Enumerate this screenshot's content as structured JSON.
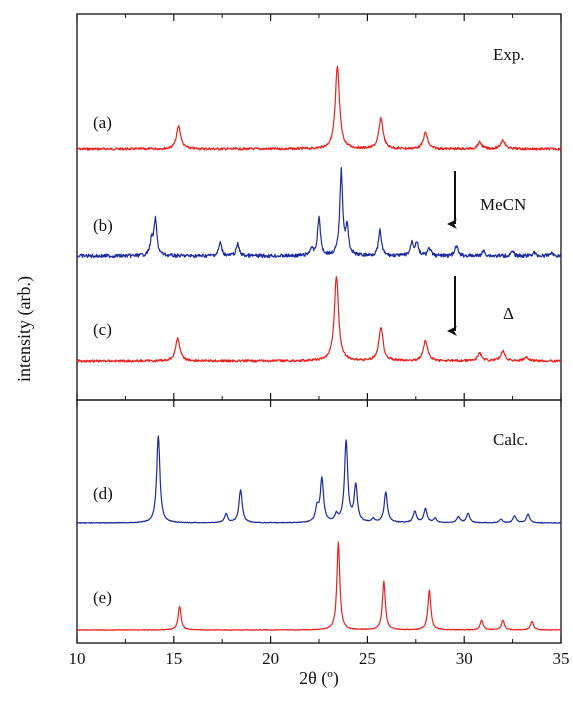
{
  "chart_data": {
    "type": "line",
    "xlabel": "2θ (º)",
    "ylabel": "intensity (arb.)",
    "xlim": [
      10,
      35
    ],
    "x_ticks": [
      10,
      15,
      20,
      25,
      30,
      35
    ],
    "grid": false,
    "colors": {
      "red": "#e8211c",
      "blue": "#1b2a9c",
      "axis": "#111111"
    },
    "panels": [
      {
        "label": "Exp.",
        "traces": [
          {
            "label": "(a)",
            "color": "#e8211c",
            "peaks": [
              [
                15.25,
                0.28
              ],
              [
                23.45,
                1.0
              ],
              [
                25.7,
                0.37
              ],
              [
                28.0,
                0.2
              ],
              [
                30.8,
                0.08
              ],
              [
                32.0,
                0.11
              ]
            ]
          },
          {
            "label": "(b)",
            "color": "#1b2a9c",
            "annotation": "MeCN",
            "peaks": [
              [
                13.85,
                0.18
              ],
              [
                14.05,
                0.42
              ],
              [
                17.4,
                0.16
              ],
              [
                18.3,
                0.14
              ],
              [
                22.1,
                0.08
              ],
              [
                22.5,
                0.45
              ],
              [
                23.65,
                1.0
              ],
              [
                23.95,
                0.32
              ],
              [
                25.65,
                0.3
              ],
              [
                27.3,
                0.16
              ],
              [
                27.55,
                0.16
              ],
              [
                28.2,
                0.09
              ],
              [
                29.6,
                0.12
              ],
              [
                31.0,
                0.06
              ],
              [
                32.5,
                0.05
              ],
              [
                33.6,
                0.04
              ],
              [
                34.5,
                0.04
              ]
            ]
          },
          {
            "label": "(c)",
            "color": "#e8211c",
            "annotation": "Δ",
            "peaks": [
              [
                15.2,
                0.27
              ],
              [
                23.4,
                1.0
              ],
              [
                25.7,
                0.4
              ],
              [
                28.0,
                0.24
              ],
              [
                30.8,
                0.09
              ],
              [
                32.0,
                0.12
              ],
              [
                33.2,
                0.04
              ]
            ]
          }
        ]
      },
      {
        "label": "Calc.",
        "traces": [
          {
            "label": "(d)",
            "color": "#1b2a9c",
            "peaks": [
              [
                14.2,
                1.0
              ],
              [
                17.7,
                0.1
              ],
              [
                18.45,
                0.38
              ],
              [
                22.4,
                0.16
              ],
              [
                22.65,
                0.5
              ],
              [
                23.4,
                0.08
              ],
              [
                23.9,
                0.93
              ],
              [
                24.4,
                0.42
              ],
              [
                25.3,
                0.04
              ],
              [
                25.95,
                0.35
              ],
              [
                27.45,
                0.13
              ],
              [
                28.0,
                0.16
              ],
              [
                28.5,
                0.05
              ],
              [
                29.7,
                0.07
              ],
              [
                30.2,
                0.11
              ],
              [
                31.9,
                0.04
              ],
              [
                32.6,
                0.08
              ],
              [
                33.3,
                0.1
              ]
            ]
          },
          {
            "label": "(e)",
            "color": "#e8211c",
            "peaks": [
              [
                15.3,
                0.27
              ],
              [
                23.5,
                1.0
              ],
              [
                25.85,
                0.55
              ],
              [
                28.2,
                0.45
              ],
              [
                30.9,
                0.11
              ],
              [
                32.0,
                0.11
              ],
              [
                33.5,
                0.1
              ]
            ]
          }
        ]
      }
    ]
  }
}
